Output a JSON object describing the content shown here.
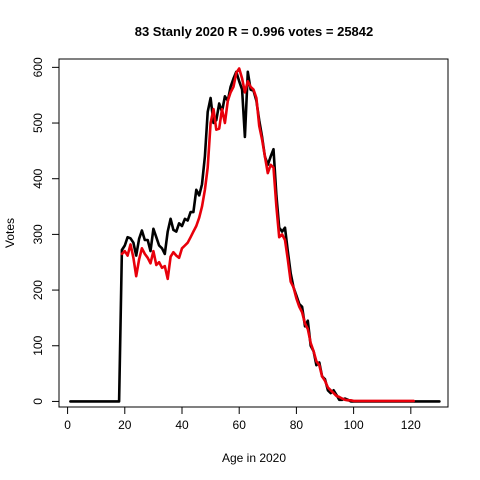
{
  "chart_data": {
    "type": "line",
    "title": "83 Stanly 2020 R = 0.996 votes = 25842",
    "xlabel": "Age in 2020",
    "ylabel": "Votes",
    "xlim": [
      -3,
      133
    ],
    "ylim": [
      -10,
      615
    ],
    "xticks": [
      0,
      20,
      40,
      60,
      80,
      100,
      120
    ],
    "yticks": [
      0,
      100,
      200,
      300,
      400,
      500,
      600
    ],
    "grid": false,
    "legend": "none",
    "series": [
      {
        "color": "#000000",
        "x": [
          1,
          2,
          3,
          4,
          5,
          6,
          7,
          8,
          9,
          10,
          11,
          12,
          13,
          14,
          15,
          16,
          17,
          18,
          19,
          20,
          21,
          22,
          23,
          24,
          25,
          26,
          27,
          28,
          29,
          30,
          31,
          32,
          33,
          34,
          35,
          36,
          37,
          38,
          39,
          40,
          41,
          42,
          43,
          44,
          45,
          46,
          47,
          48,
          49,
          50,
          51,
          52,
          53,
          54,
          55,
          56,
          57,
          58,
          59,
          60,
          61,
          62,
          63,
          64,
          65,
          66,
          67,
          68,
          69,
          70,
          71,
          72,
          73,
          74,
          75,
          76,
          77,
          78,
          79,
          80,
          81,
          82,
          83,
          84,
          85,
          86,
          87,
          88,
          89,
          90,
          91,
          92,
          93,
          94,
          95,
          96,
          97,
          98,
          99,
          100,
          101,
          102,
          103,
          104,
          105,
          106,
          107,
          108,
          109,
          110,
          111,
          112,
          113,
          114,
          115,
          116,
          117,
          118,
          119,
          120,
          121,
          122,
          123,
          124,
          125,
          126,
          127,
          128,
          129,
          130
        ],
        "y": [
          0,
          0,
          0,
          0,
          0,
          0,
          0,
          0,
          0,
          0,
          0,
          0,
          0,
          0,
          0,
          0,
          0,
          0,
          272,
          280,
          295,
          293,
          285,
          262,
          292,
          307,
          290,
          290,
          270,
          310,
          295,
          280,
          275,
          265,
          305,
          328,
          308,
          305,
          320,
          315,
          328,
          325,
          340,
          340,
          380,
          370,
          390,
          440,
          520,
          545,
          500,
          505,
          535,
          520,
          548,
          540,
          565,
          580,
          592,
          575,
          560,
          475,
          592,
          560,
          558,
          540,
          505,
          475,
          440,
          425,
          440,
          453,
          370,
          312,
          305,
          312,
          270,
          230,
          205,
          190,
          175,
          170,
          135,
          145,
          100,
          90,
          65,
          70,
          45,
          40,
          20,
          15,
          20,
          12,
          3,
          3,
          5,
          3,
          0,
          0,
          0,
          0,
          0,
          0,
          0,
          0,
          0,
          0,
          0,
          0,
          0,
          0,
          0,
          0,
          0,
          0,
          0,
          0,
          0,
          0,
          0,
          0,
          0,
          0,
          0,
          0,
          0,
          0,
          0,
          0
        ]
      },
      {
        "color": "#e8000b",
        "x": [
          19,
          20,
          21,
          22,
          23,
          24,
          25,
          26,
          27,
          28,
          29,
          30,
          31,
          32,
          33,
          34,
          35,
          36,
          37,
          38,
          39,
          40,
          41,
          42,
          43,
          44,
          45,
          46,
          47,
          48,
          49,
          50,
          51,
          52,
          53,
          54,
          55,
          56,
          57,
          58,
          59,
          60,
          61,
          62,
          63,
          64,
          65,
          66,
          67,
          68,
          69,
          70,
          71,
          72,
          73,
          74,
          75,
          76,
          77,
          78,
          79,
          80,
          81,
          82,
          83,
          84,
          85,
          86,
          87,
          88,
          89,
          90,
          91,
          92,
          93,
          94,
          95,
          96,
          97,
          98,
          99,
          100,
          101,
          102,
          103,
          104,
          105,
          106,
          107,
          108,
          109,
          110,
          111,
          112,
          113,
          114,
          115,
          116,
          117,
          118,
          119,
          120,
          121
        ],
        "y": [
          265,
          270,
          262,
          282,
          258,
          225,
          255,
          275,
          265,
          258,
          248,
          270,
          245,
          250,
          240,
          243,
          220,
          260,
          268,
          262,
          258,
          275,
          280,
          285,
          295,
          305,
          315,
          330,
          350,
          380,
          420,
          500,
          525,
          488,
          490,
          525,
          500,
          540,
          555,
          565,
          590,
          598,
          580,
          555,
          575,
          565,
          560,
          545,
          495,
          470,
          440,
          410,
          425,
          420,
          350,
          295,
          300,
          290,
          255,
          215,
          205,
          185,
          170,
          160,
          140,
          130,
          105,
          90,
          72,
          65,
          45,
          37,
          25,
          20,
          15,
          10,
          8,
          5,
          3,
          2,
          2,
          1,
          1,
          1,
          1,
          1,
          1,
          1,
          1,
          1,
          1,
          1,
          1,
          1,
          1,
          1,
          1,
          1,
          1,
          1,
          1,
          1,
          1
        ]
      }
    ]
  }
}
